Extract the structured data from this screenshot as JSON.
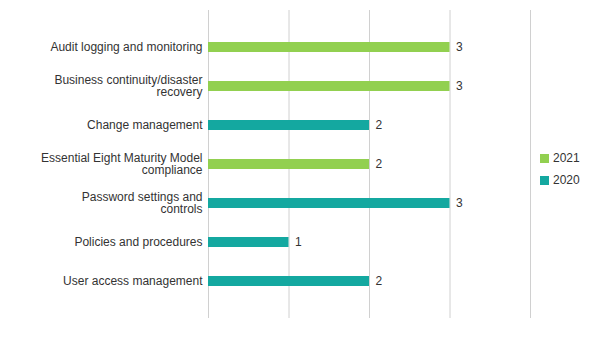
{
  "chart_data": {
    "type": "bar",
    "orientation": "horizontal",
    "categories": [
      "Audit logging and monitoring",
      "Business continuity/disaster recovery",
      "Change management",
      "Essential Eight Maturity Model compliance",
      "Password settings and controls",
      "Policies and procedures",
      "User access management"
    ],
    "series": [
      {
        "name": "2021",
        "color": "#92d050",
        "values": [
          3,
          3,
          null,
          2,
          null,
          null,
          null
        ]
      },
      {
        "name": "2020",
        "color": "#14a8a0",
        "values": [
          null,
          null,
          2,
          null,
          3,
          1,
          2
        ]
      }
    ],
    "xlim": [
      0,
      4
    ],
    "xticks": [
      0,
      1,
      2,
      3,
      4
    ],
    "grid": true,
    "data_labels": true,
    "tick_labels": "y",
    "legend": "right"
  }
}
